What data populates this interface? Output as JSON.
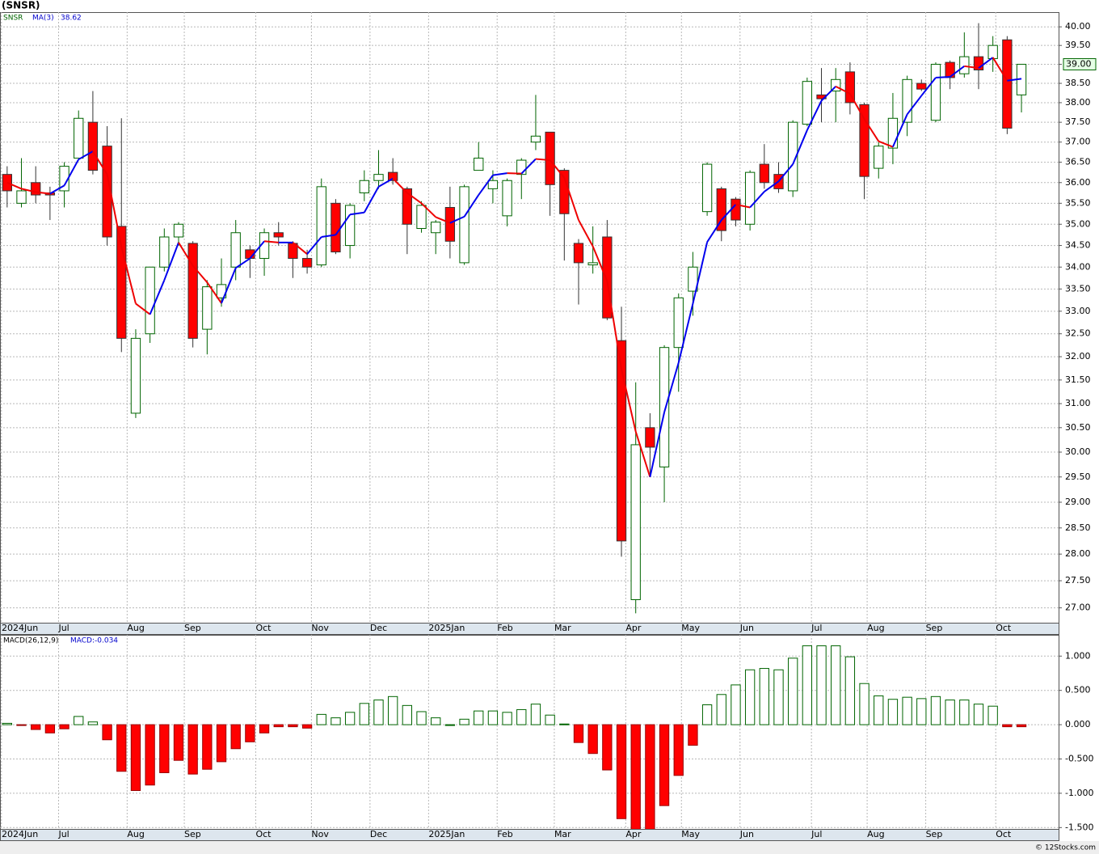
{
  "title": "(SNSR)",
  "footer": "© 12Stocks.com",
  "chart_data": [
    {
      "type": "candlestick",
      "symbol_label": "SNSR",
      "log_scale": true,
      "grid": true,
      "up_color": "#006400",
      "down_color": "#ff0000",
      "last_price_label": "39.00",
      "ylim": [
        26.73,
        40.4
      ],
      "yticks": [
        {
          "value": 27,
          "label": "27.00"
        },
        {
          "value": 27.5,
          "label": "27.50"
        },
        {
          "value": 28,
          "label": "28.00"
        },
        {
          "value": 28.5,
          "label": "28.50"
        },
        {
          "value": 29,
          "label": "29.00"
        },
        {
          "value": 29.5,
          "label": "29.50"
        },
        {
          "value": 30,
          "label": "30.00"
        },
        {
          "value": 30.5,
          "label": "30.50"
        },
        {
          "value": 31,
          "label": "31.00"
        },
        {
          "value": 31.5,
          "label": "31.50"
        },
        {
          "value": 32,
          "label": "32.00"
        },
        {
          "value": 32.5,
          "label": "32.50"
        },
        {
          "value": 33,
          "label": "33.00"
        },
        {
          "value": 33.5,
          "label": "33.50"
        },
        {
          "value": 34,
          "label": "34.00"
        },
        {
          "value": 34.5,
          "label": "34.50"
        },
        {
          "value": 35,
          "label": "35.00"
        },
        {
          "value": 35.5,
          "label": "35.50"
        },
        {
          "value": 36,
          "label": "36.00"
        },
        {
          "value": 36.5,
          "label": "36.50"
        },
        {
          "value": 37,
          "label": "37.00"
        },
        {
          "value": 37.5,
          "label": "37.50"
        },
        {
          "value": 38,
          "label": "38.00"
        },
        {
          "value": 38.5,
          "label": "38.50"
        },
        {
          "value": 39,
          "label": "39.00"
        },
        {
          "value": 39.5,
          "label": "39.50"
        },
        {
          "value": 40,
          "label": "40.00"
        }
      ],
      "xlim": [
        -0.5,
        73.6
      ],
      "xticks": [
        {
          "value": -0.4,
          "label": "2024Jun"
        },
        {
          "value": 3.6,
          "label": "Jul"
        },
        {
          "value": 8.4,
          "label": "Aug"
        },
        {
          "value": 12.4,
          "label": "Sep"
        },
        {
          "value": 17.4,
          "label": "Oct"
        },
        {
          "value": 21.3,
          "label": "Nov"
        },
        {
          "value": 25.4,
          "label": "Dec"
        },
        {
          "value": 29.5,
          "label": "2025Jan"
        },
        {
          "value": 34.3,
          "label": "Feb"
        },
        {
          "value": 38.3,
          "label": "Mar"
        },
        {
          "value": 43.3,
          "label": "Apr"
        },
        {
          "value": 47.2,
          "label": "May"
        },
        {
          "value": 51.3,
          "label": "Jun"
        },
        {
          "value": 56.3,
          "label": "Jul"
        },
        {
          "value": 60.2,
          "label": "Aug"
        },
        {
          "value": 64.3,
          "label": "Sep"
        },
        {
          "value": 69.2,
          "label": "Oct"
        }
      ],
      "open": [
        36.2,
        35.5,
        36.0,
        35.75,
        35.8,
        36.6,
        37.5,
        36.9,
        34.95,
        30.8,
        32.5,
        34.0,
        34.7,
        34.55,
        32.6,
        33.3,
        34.0,
        34.4,
        34.2,
        34.8,
        34.55,
        34.2,
        34.05,
        35.5,
        34.5,
        35.75,
        36.05,
        36.25,
        35.85,
        34.9,
        34.8,
        35.4,
        34.1,
        36.3,
        35.85,
        35.2,
        36.2,
        37.0,
        37.25,
        36.3,
        34.55,
        34.05,
        34.7,
        32.35,
        27.15,
        30.5,
        29.7,
        32.2,
        33.45,
        35.3,
        35.85,
        35.6,
        35.0,
        36.45,
        36.2,
        35.8,
        37.45,
        38.2,
        38.3,
        38.8,
        37.95,
        36.35,
        36.85,
        37.5,
        38.5,
        37.55,
        39.05,
        38.75,
        39.2,
        39.15,
        39.65,
        38.2
      ],
      "high": [
        36.4,
        36.6,
        36.4,
        35.9,
        36.5,
        37.8,
        38.3,
        37.4,
        37.6,
        32.6,
        34.0,
        34.9,
        35.05,
        34.6,
        33.7,
        34.2,
        35.1,
        34.5,
        34.9,
        35.05,
        34.6,
        34.4,
        36.1,
        35.6,
        35.5,
        36.3,
        36.8,
        36.6,
        35.9,
        35.55,
        35.1,
        35.9,
        35.95,
        37.0,
        36.3,
        36.1,
        36.6,
        38.2,
        37.25,
        36.35,
        34.65,
        34.95,
        35.1,
        33.1,
        31.45,
        30.8,
        32.25,
        33.4,
        34.35,
        36.5,
        35.9,
        35.65,
        36.3,
        36.95,
        36.5,
        37.55,
        38.65,
        38.9,
        38.9,
        39.05,
        38.0,
        37.0,
        38.25,
        38.7,
        38.6,
        39.05,
        39.1,
        39.85,
        40.1,
        39.75,
        39.75,
        39.0
      ],
      "low": [
        35.4,
        35.4,
        35.5,
        35.1,
        35.4,
        36.6,
        36.2,
        34.5,
        32.1,
        30.7,
        32.3,
        33.9,
        34.5,
        32.2,
        32.05,
        33.1,
        33.7,
        33.75,
        33.8,
        34.5,
        33.75,
        33.85,
        34.0,
        34.3,
        34.2,
        35.55,
        35.85,
        35.95,
        34.3,
        34.8,
        34.3,
        34.2,
        34.05,
        36.3,
        35.5,
        34.95,
        35.6,
        36.8,
        35.2,
        34.15,
        33.15,
        33.85,
        32.8,
        27.95,
        26.9,
        29.5,
        29.0,
        31.25,
        32.9,
        35.2,
        34.6,
        34.95,
        34.85,
        35.85,
        35.75,
        35.65,
        37.4,
        37.5,
        37.5,
        37.7,
        35.6,
        36.1,
        36.45,
        37.15,
        38.3,
        37.5,
        38.35,
        38.65,
        38.35,
        38.8,
        37.2,
        37.75
      ],
      "close": [
        35.8,
        35.8,
        35.7,
        35.7,
        36.4,
        37.6,
        36.3,
        34.7,
        32.4,
        32.4,
        34.0,
        34.7,
        35.0,
        32.4,
        33.55,
        33.6,
        34.8,
        34.2,
        34.8,
        34.7,
        34.2,
        34.0,
        35.9,
        34.35,
        35.45,
        36.05,
        36.2,
        36.05,
        35.0,
        35.45,
        35.05,
        34.6,
        35.9,
        36.6,
        36.05,
        36.05,
        36.55,
        37.15,
        35.95,
        35.25,
        34.1,
        34.1,
        32.85,
        28.25,
        30.15,
        30.1,
        32.2,
        33.3,
        34.0,
        36.45,
        34.85,
        35.1,
        36.25,
        36.0,
        35.85,
        37.5,
        38.55,
        38.1,
        38.6,
        38.0,
        36.15,
        36.9,
        37.6,
        38.6,
        38.35,
        39.0,
        38.65,
        39.2,
        38.85,
        39.5,
        37.35,
        39.0
      ],
      "ma": {
        "name": "MA(3)",
        "value_label": "38.62",
        "up_color": "#0000ee",
        "down_color": "#ee0000",
        "values": [
          36.0,
          35.85,
          35.77,
          35.73,
          35.93,
          36.57,
          36.77,
          36.2,
          34.47,
          33.17,
          32.93,
          33.7,
          34.57,
          34.03,
          33.65,
          33.18,
          33.98,
          34.2,
          34.6,
          34.57,
          34.57,
          34.3,
          34.7,
          34.75,
          35.23,
          35.28,
          35.9,
          36.1,
          35.75,
          35.5,
          35.17,
          35.03,
          35.18,
          35.7,
          36.18,
          36.23,
          36.22,
          36.58,
          36.55,
          36.12,
          35.1,
          34.48,
          33.68,
          31.73,
          30.42,
          29.5,
          30.82,
          31.87,
          33.17,
          34.58,
          35.1,
          35.47,
          35.4,
          35.78,
          36.03,
          36.45,
          37.3,
          38.05,
          38.42,
          38.23,
          37.58,
          37.02,
          36.88,
          37.7,
          38.18,
          38.65,
          38.67,
          38.95,
          38.9,
          39.18,
          38.57,
          38.62
        ]
      }
    },
    {
      "type": "bar",
      "title": "MACD(26,12,9)",
      "value_label": "MACD:-0.034",
      "grid": true,
      "positive_color": "#006400",
      "negative_color": "#ff0000",
      "ylim": [
        -1.52,
        1.31
      ],
      "yticks": [
        {
          "value": -1.5,
          "label": "-1.500"
        },
        {
          "value": -1,
          "label": "-1.000"
        },
        {
          "value": -0.5,
          "label": "-0.500"
        },
        {
          "value": 0,
          "label": "0.000"
        },
        {
          "value": 0.5,
          "label": "0.500"
        },
        {
          "value": 1,
          "label": "1.000"
        }
      ],
      "xlim": [
        -0.5,
        73.6
      ],
      "xticks": [
        {
          "value": -0.4,
          "label": "2024Jun"
        },
        {
          "value": 3.6,
          "label": "Jul"
        },
        {
          "value": 8.4,
          "label": "Aug"
        },
        {
          "value": 12.4,
          "label": "Sep"
        },
        {
          "value": 17.4,
          "label": "Oct"
        },
        {
          "value": 21.3,
          "label": "Nov"
        },
        {
          "value": 25.4,
          "label": "Dec"
        },
        {
          "value": 29.5,
          "label": "2025Jan"
        },
        {
          "value": 34.3,
          "label": "Feb"
        },
        {
          "value": 38.3,
          "label": "Mar"
        },
        {
          "value": 43.3,
          "label": "Apr"
        },
        {
          "value": 47.2,
          "label": "May"
        },
        {
          "value": 51.3,
          "label": "Jun"
        },
        {
          "value": 56.3,
          "label": "Jul"
        },
        {
          "value": 60.2,
          "label": "Aug"
        },
        {
          "value": 64.3,
          "label": "Sep"
        },
        {
          "value": 69.2,
          "label": "Oct"
        }
      ],
      "values": [
        0.02,
        -0.01,
        -0.07,
        -0.12,
        -0.06,
        0.12,
        0.04,
        -0.22,
        -0.68,
        -0.96,
        -0.88,
        -0.7,
        -0.52,
        -0.72,
        -0.65,
        -0.54,
        -0.35,
        -0.25,
        -0.12,
        -0.03,
        -0.03,
        -0.05,
        0.15,
        0.1,
        0.18,
        0.31,
        0.36,
        0.41,
        0.28,
        0.19,
        0.1,
        0.0,
        0.08,
        0.2,
        0.2,
        0.18,
        0.22,
        0.3,
        0.14,
        0.01,
        -0.26,
        -0.42,
        -0.66,
        -1.37,
        -1.6,
        -1.6,
        -1.18,
        -0.74,
        -0.3,
        0.29,
        0.44,
        0.58,
        0.8,
        0.82,
        0.8,
        0.97,
        1.15,
        1.15,
        1.15,
        0.99,
        0.6,
        0.42,
        0.37,
        0.4,
        0.38,
        0.41,
        0.36,
        0.36,
        0.3,
        0.27,
        -0.03,
        -0.03
      ]
    }
  ]
}
